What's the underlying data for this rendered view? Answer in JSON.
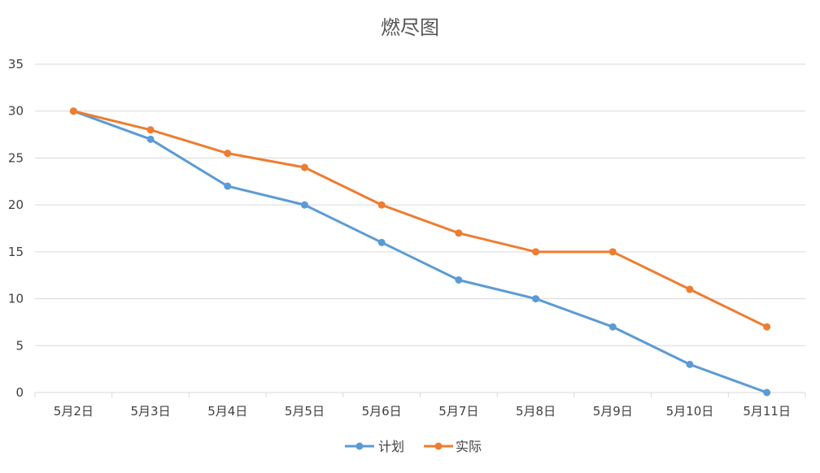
{
  "chart_data": {
    "type": "line",
    "title": "燃尽图",
    "xlabel": "",
    "ylabel": "",
    "categories": [
      "5月2日",
      "5月3日",
      "5月4日",
      "5月5日",
      "5月6日",
      "5月7日",
      "5月8日",
      "5月9日",
      "5月10日",
      "5月11日"
    ],
    "series": [
      {
        "name": "计划",
        "color": "#5b9bd5",
        "values": [
          30,
          27,
          22,
          20,
          16,
          12,
          10,
          7,
          3,
          0
        ]
      },
      {
        "name": "实际",
        "color": "#ed7d31",
        "values": [
          30,
          28,
          25.5,
          24,
          20,
          17,
          15,
          15,
          11,
          7
        ]
      }
    ],
    "ylim": [
      0,
      35
    ],
    "yticks": [
      "0",
      "5",
      "10",
      "15",
      "20",
      "25",
      "30",
      "35"
    ],
    "grid": true,
    "legend_position": "bottom"
  }
}
